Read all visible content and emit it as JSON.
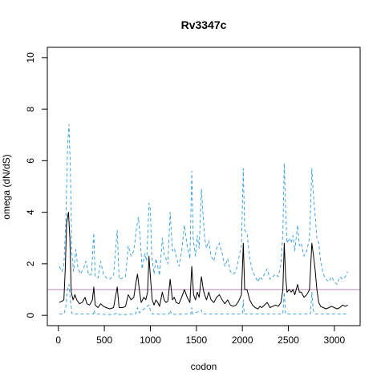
{
  "chart_data": {
    "type": "line",
    "title": "Rv3347c",
    "xlabel": "codon",
    "ylabel": "omega (dN/dS)",
    "xlim": [
      -120,
      3280
    ],
    "ylim": [
      -0.4,
      10.4
    ],
    "xticks": [
      0,
      500,
      1000,
      1500,
      2000,
      2500,
      3000
    ],
    "yticks": [
      0,
      2,
      4,
      6,
      8,
      10
    ],
    "reference_line": {
      "y": 1.0,
      "color": "#c0a0c0"
    },
    "series": [
      {
        "role": "upper",
        "color": "#2f9be0",
        "dash": "dashed",
        "points": [
          [
            10,
            1.9
          ],
          [
            40,
            1.7
          ],
          [
            60,
            1.95
          ],
          [
            80,
            3.5
          ],
          [
            100,
            6.5
          ],
          [
            115,
            7.4
          ],
          [
            130,
            5.8
          ],
          [
            145,
            2.5
          ],
          [
            165,
            1.7
          ],
          [
            190,
            2.55
          ],
          [
            210,
            1.9
          ],
          [
            240,
            1.6
          ],
          [
            270,
            1.8
          ],
          [
            300,
            2.1
          ],
          [
            330,
            1.55
          ],
          [
            360,
            1.6
          ],
          [
            385,
            3.2
          ],
          [
            400,
            1.5
          ],
          [
            430,
            1.45
          ],
          [
            460,
            2.1
          ],
          [
            490,
            1.6
          ],
          [
            520,
            1.45
          ],
          [
            560,
            1.4
          ],
          [
            600,
            1.55
          ],
          [
            640,
            3.3
          ],
          [
            660,
            1.4
          ],
          [
            700,
            1.45
          ],
          [
            730,
            1.5
          ],
          [
            760,
            2.7
          ],
          [
            790,
            2.3
          ],
          [
            820,
            2.5
          ],
          [
            850,
            3.4
          ],
          [
            870,
            3.8
          ],
          [
            890,
            3.0
          ],
          [
            910,
            1.8
          ],
          [
            940,
            2.4
          ],
          [
            960,
            2.1
          ],
          [
            985,
            4.35
          ],
          [
            1000,
            4.1
          ],
          [
            1015,
            2.3
          ],
          [
            1040,
            1.6
          ],
          [
            1060,
            2.2
          ],
          [
            1080,
            1.9
          ],
          [
            1100,
            1.55
          ],
          [
            1130,
            3.0
          ],
          [
            1150,
            2.3
          ],
          [
            1170,
            2.2
          ],
          [
            1190,
            2.0
          ],
          [
            1215,
            4.0
          ],
          [
            1240,
            2.5
          ],
          [
            1260,
            2.6
          ],
          [
            1280,
            2.3
          ],
          [
            1310,
            1.9
          ],
          [
            1340,
            2.5
          ],
          [
            1370,
            3.5
          ],
          [
            1400,
            2.7
          ],
          [
            1430,
            2.2
          ],
          [
            1450,
            5.6
          ],
          [
            1465,
            3.0
          ],
          [
            1490,
            2.3
          ],
          [
            1510,
            3.1
          ],
          [
            1530,
            2.6
          ],
          [
            1555,
            4.9
          ],
          [
            1575,
            3.8
          ],
          [
            1590,
            3.0
          ],
          [
            1610,
            2.6
          ],
          [
            1635,
            2.9
          ],
          [
            1660,
            2.3
          ],
          [
            1690,
            2.1
          ],
          [
            1720,
            2.6
          ],
          [
            1750,
            2.8
          ],
          [
            1780,
            2.4
          ],
          [
            1810,
            1.9
          ],
          [
            1840,
            2.2
          ],
          [
            1870,
            1.7
          ],
          [
            1900,
            1.6
          ],
          [
            1930,
            1.7
          ],
          [
            1960,
            2.2
          ],
          [
            1990,
            2.7
          ],
          [
            2010,
            5.7
          ],
          [
            2025,
            3.3
          ],
          [
            2050,
            3.2
          ],
          [
            2080,
            2.2
          ],
          [
            2110,
            1.7
          ],
          [
            2140,
            1.5
          ],
          [
            2170,
            1.3
          ],
          [
            2190,
            1.5
          ],
          [
            2210,
            1.4
          ],
          [
            2240,
            1.6
          ],
          [
            2270,
            1.8
          ],
          [
            2300,
            1.4
          ],
          [
            2330,
            1.5
          ],
          [
            2360,
            1.6
          ],
          [
            2390,
            1.5
          ],
          [
            2420,
            2.0
          ],
          [
            2440,
            3.2
          ],
          [
            2455,
            5.9
          ],
          [
            2470,
            4.2
          ],
          [
            2485,
            2.8
          ],
          [
            2510,
            3.0
          ],
          [
            2530,
            2.8
          ],
          [
            2550,
            3.1
          ],
          [
            2570,
            2.5
          ],
          [
            2600,
            3.5
          ],
          [
            2620,
            2.7
          ],
          [
            2640,
            2.8
          ],
          [
            2670,
            2.3
          ],
          [
            2700,
            2.5
          ],
          [
            2730,
            3.0
          ],
          [
            2755,
            5.7
          ],
          [
            2770,
            4.8
          ],
          [
            2790,
            3.9
          ],
          [
            2810,
            3.0
          ],
          [
            2830,
            2.8
          ],
          [
            2850,
            2.1
          ],
          [
            2880,
            1.6
          ],
          [
            2910,
            1.4
          ],
          [
            2940,
            1.3
          ],
          [
            2970,
            1.5
          ],
          [
            3000,
            1.3
          ],
          [
            3030,
            1.2
          ],
          [
            3060,
            1.5
          ],
          [
            3090,
            1.4
          ],
          [
            3120,
            1.5
          ],
          [
            3145,
            1.7
          ]
        ]
      },
      {
        "role": "estimate",
        "color": "#000000",
        "dash": "solid",
        "points": [
          [
            10,
            0.5
          ],
          [
            40,
            0.55
          ],
          [
            60,
            0.6
          ],
          [
            75,
            1.8
          ],
          [
            90,
            3.6
          ],
          [
            110,
            4.0
          ],
          [
            125,
            3.0
          ],
          [
            140,
            0.9
          ],
          [
            160,
            0.6
          ],
          [
            180,
            0.8
          ],
          [
            200,
            0.6
          ],
          [
            230,
            0.45
          ],
          [
            260,
            0.5
          ],
          [
            290,
            0.7
          ],
          [
            310,
            0.45
          ],
          [
            340,
            0.4
          ],
          [
            370,
            0.6
          ],
          [
            385,
            1.1
          ],
          [
            400,
            0.4
          ],
          [
            430,
            0.3
          ],
          [
            460,
            0.45
          ],
          [
            490,
            0.35
          ],
          [
            520,
            0.3
          ],
          [
            560,
            0.25
          ],
          [
            600,
            0.3
          ],
          [
            640,
            1.1
          ],
          [
            660,
            0.3
          ],
          [
            700,
            0.3
          ],
          [
            730,
            0.35
          ],
          [
            760,
            0.8
          ],
          [
            790,
            0.6
          ],
          [
            820,
            0.7
          ],
          [
            845,
            1.3
          ],
          [
            860,
            1.6
          ],
          [
            880,
            1.0
          ],
          [
            900,
            0.5
          ],
          [
            930,
            0.7
          ],
          [
            950,
            0.6
          ],
          [
            970,
            0.9
          ],
          [
            985,
            2.3
          ],
          [
            1000,
            1.5
          ],
          [
            1020,
            0.6
          ],
          [
            1040,
            0.4
          ],
          [
            1060,
            0.6
          ],
          [
            1080,
            0.5
          ],
          [
            1100,
            0.35
          ],
          [
            1130,
            0.9
          ],
          [
            1150,
            0.6
          ],
          [
            1170,
            0.5
          ],
          [
            1190,
            0.55
          ],
          [
            1215,
            1.4
          ],
          [
            1240,
            0.6
          ],
          [
            1260,
            0.7
          ],
          [
            1280,
            0.5
          ],
          [
            1310,
            0.45
          ],
          [
            1340,
            0.7
          ],
          [
            1370,
            1.0
          ],
          [
            1400,
            0.7
          ],
          [
            1430,
            0.5
          ],
          [
            1450,
            1.9
          ],
          [
            1470,
            0.8
          ],
          [
            1490,
            0.6
          ],
          [
            1510,
            0.9
          ],
          [
            1530,
            0.7
          ],
          [
            1555,
            1.5
          ],
          [
            1575,
            1.0
          ],
          [
            1590,
            0.8
          ],
          [
            1610,
            0.6
          ],
          [
            1635,
            0.9
          ],
          [
            1660,
            0.6
          ],
          [
            1690,
            0.5
          ],
          [
            1720,
            0.7
          ],
          [
            1750,
            0.8
          ],
          [
            1780,
            0.6
          ],
          [
            1810,
            0.45
          ],
          [
            1840,
            0.6
          ],
          [
            1870,
            0.4
          ],
          [
            1900,
            0.35
          ],
          [
            1930,
            0.4
          ],
          [
            1960,
            0.55
          ],
          [
            1990,
            0.8
          ],
          [
            2010,
            2.8
          ],
          [
            2025,
            1.0
          ],
          [
            2050,
            1.0
          ],
          [
            2080,
            0.6
          ],
          [
            2110,
            0.4
          ],
          [
            2140,
            0.3
          ],
          [
            2170,
            0.25
          ],
          [
            2190,
            0.35
          ],
          [
            2210,
            0.3
          ],
          [
            2240,
            0.4
          ],
          [
            2270,
            0.5
          ],
          [
            2300,
            0.3
          ],
          [
            2330,
            0.35
          ],
          [
            2360,
            0.4
          ],
          [
            2390,
            0.35
          ],
          [
            2420,
            0.5
          ],
          [
            2440,
            1.0
          ],
          [
            2455,
            2.8
          ],
          [
            2470,
            1.5
          ],
          [
            2485,
            0.9
          ],
          [
            2510,
            1.0
          ],
          [
            2530,
            0.9
          ],
          [
            2550,
            1.0
          ],
          [
            2570,
            0.8
          ],
          [
            2600,
            1.2
          ],
          [
            2620,
            0.9
          ],
          [
            2640,
            0.9
          ],
          [
            2670,
            0.7
          ],
          [
            2700,
            0.8
          ],
          [
            2730,
            1.0
          ],
          [
            2755,
            2.8
          ],
          [
            2770,
            2.4
          ],
          [
            2790,
            1.8
          ],
          [
            2810,
            1.0
          ],
          [
            2830,
            0.5
          ],
          [
            2850,
            0.35
          ],
          [
            2880,
            0.3
          ],
          [
            2910,
            0.25
          ],
          [
            2940,
            0.3
          ],
          [
            2970,
            0.35
          ],
          [
            3000,
            0.3
          ],
          [
            3030,
            0.25
          ],
          [
            3060,
            0.3
          ],
          [
            3090,
            0.4
          ],
          [
            3120,
            0.35
          ],
          [
            3145,
            0.4
          ]
        ]
      },
      {
        "role": "lower",
        "color": "#2f9be0",
        "dash": "dashed",
        "points": [
          [
            10,
            0.05
          ],
          [
            60,
            0.05
          ],
          [
            80,
            0.3
          ],
          [
            100,
            1.0
          ],
          [
            115,
            1.2
          ],
          [
            130,
            0.6
          ],
          [
            150,
            0.05
          ],
          [
            200,
            0.05
          ],
          [
            300,
            0.05
          ],
          [
            380,
            0.05
          ],
          [
            390,
            0.2
          ],
          [
            400,
            0.05
          ],
          [
            600,
            0.03
          ],
          [
            640,
            0.1
          ],
          [
            660,
            0.03
          ],
          [
            840,
            0.05
          ],
          [
            860,
            0.3
          ],
          [
            880,
            0.1
          ],
          [
            985,
            0.4
          ],
          [
            1000,
            0.2
          ],
          [
            1020,
            0.05
          ],
          [
            1200,
            0.04
          ],
          [
            1215,
            0.2
          ],
          [
            1230,
            0.04
          ],
          [
            1440,
            0.05
          ],
          [
            1450,
            0.3
          ],
          [
            1460,
            0.05
          ],
          [
            1555,
            0.2
          ],
          [
            1570,
            0.05
          ],
          [
            2000,
            0.05
          ],
          [
            2010,
            0.6
          ],
          [
            2020,
            0.05
          ],
          [
            2440,
            0.05
          ],
          [
            2455,
            0.9
          ],
          [
            2470,
            0.05
          ],
          [
            2740,
            0.05
          ],
          [
            2755,
            0.9
          ],
          [
            2770,
            0.2
          ],
          [
            2790,
            0.05
          ],
          [
            3145,
            0.05
          ]
        ]
      }
    ]
  }
}
